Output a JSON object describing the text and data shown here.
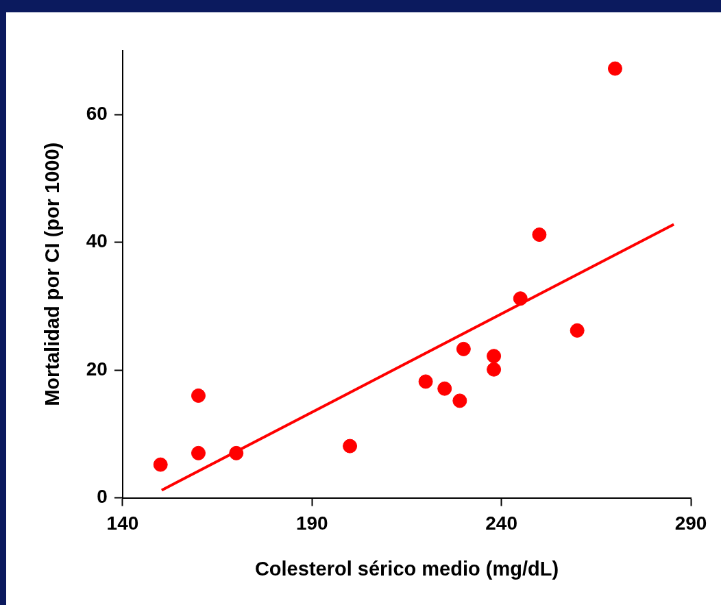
{
  "chart_data": {
    "type": "scatter",
    "xlabel": "Colesterol sérico medio (mg/dL)",
    "ylabel": "Mortalidad por CI (por 1000)",
    "xlim": [
      140,
      290
    ],
    "xticks": [
      140,
      190,
      240,
      290
    ],
    "ylim": [
      0,
      70
    ],
    "yticks": [
      0,
      20,
      40,
      60
    ],
    "grid": false,
    "legend": false,
    "marker": "circle",
    "series": [
      {
        "type": "scatter",
        "color": "#ff0000",
        "x": [
          150,
          160,
          160,
          170,
          200,
          220,
          225,
          229,
          230,
          238,
          238,
          245,
          250,
          260,
          270
        ],
        "values": [
          5.2,
          16,
          7,
          7,
          8.1,
          18.2,
          17.1,
          15.2,
          23.3,
          22.2,
          20.1,
          31.2,
          41.2,
          26.2,
          67.2
        ]
      },
      {
        "type": "line",
        "color": "#ff0000",
        "marker": "none",
        "x": [
          150.3,
          285.5
        ],
        "values": [
          1.2,
          42.8
        ]
      }
    ]
  }
}
